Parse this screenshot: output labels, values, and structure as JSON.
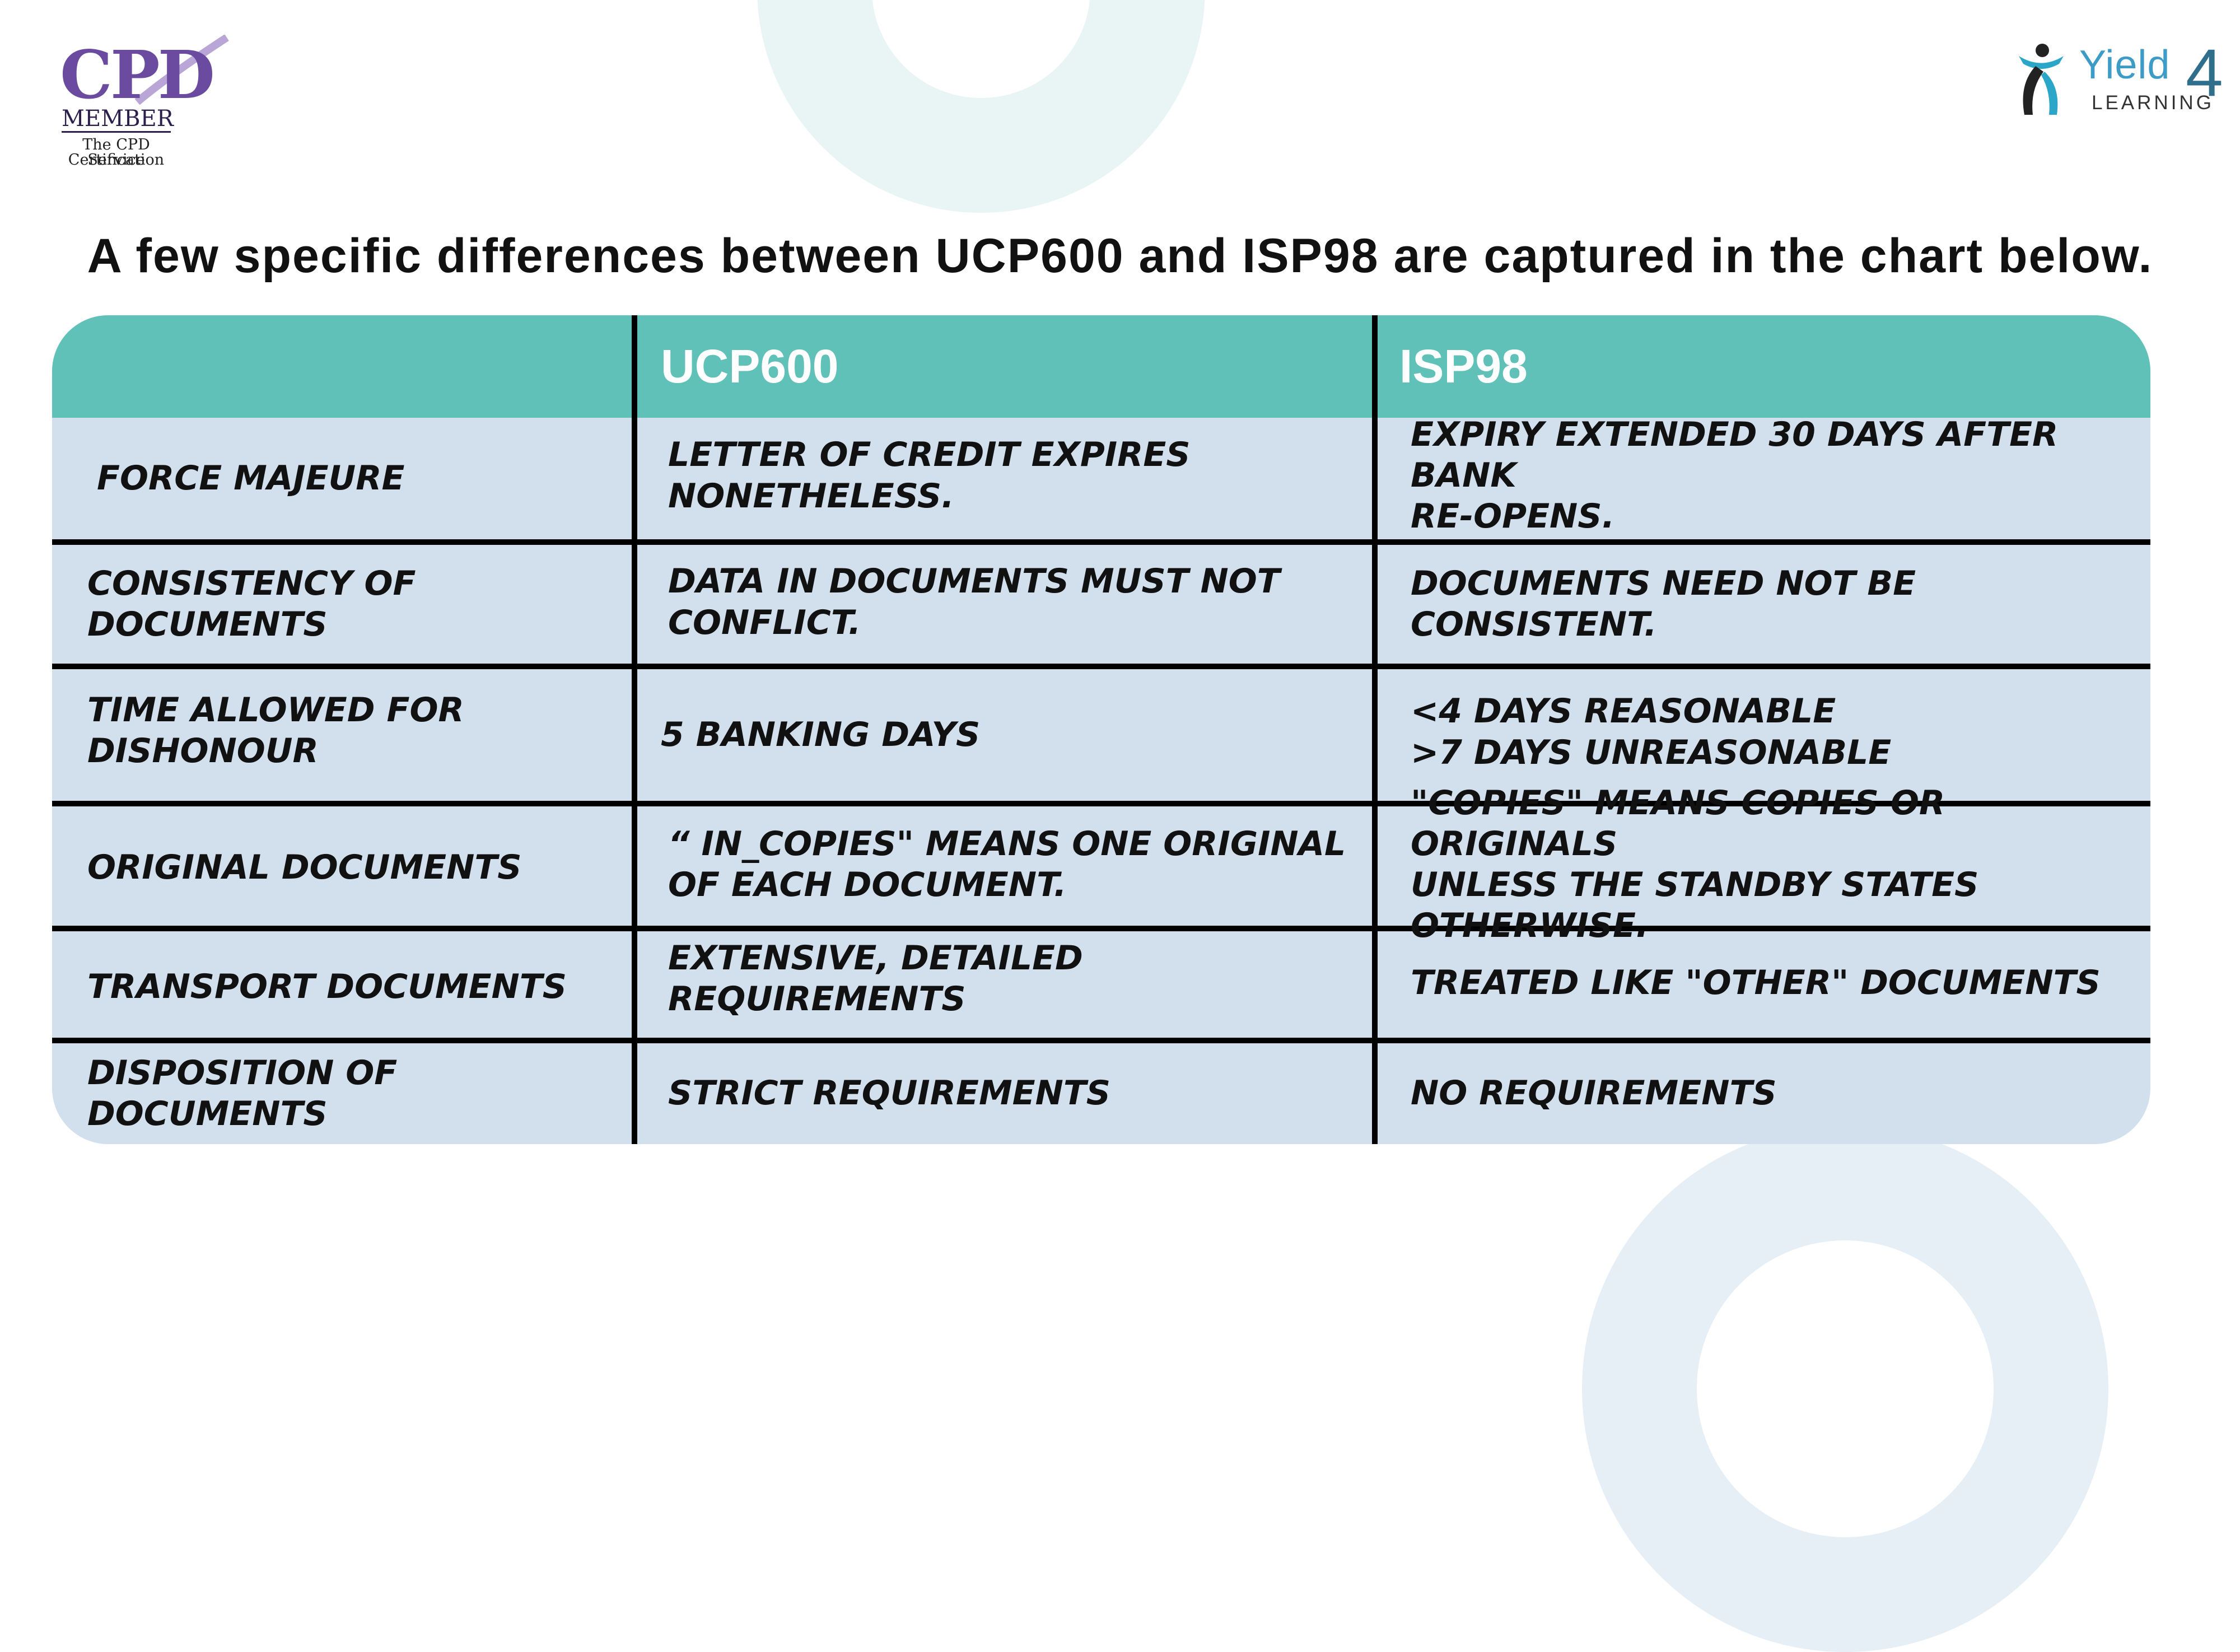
{
  "logos": {
    "cpd": {
      "mark": "CPD",
      "member": "MEMBER",
      "line1": "The CPD Certification",
      "line2": "Service"
    },
    "yield4": {
      "word": "Yield",
      "number": "4",
      "sub": "LEARNING"
    }
  },
  "title": "A few specific differences between UCP600 and ISP98 are captured in the chart below.",
  "table": {
    "headers": [
      "",
      "UCP600",
      "ISP98"
    ],
    "rows": [
      {
        "label": "FORCE MAJEURE",
        "ucp600": "LETTER OF CREDIT EXPIRES NONETHELESS.",
        "isp98": "EXPIRY EXTENDED 30 DAYS AFTER BANK\nRE-OPENS."
      },
      {
        "label": "CONSISTENCY OF DOCUMENTS",
        "ucp600": "DATA IN DOCUMENTS MUST NOT\nCONFLICT.",
        "isp98": "DOCUMENTS NEED NOT BE CONSISTENT."
      },
      {
        "label": "TIME ALLOWED FOR\nDISHONOUR",
        "ucp600": "5 BANKING DAYS",
        "isp98": "<4 DAYS REASONABLE\n>7 DAYS UNREASONABLE"
      },
      {
        "label": "ORIGINAL DOCUMENTS",
        "ucp600": "“ IN_COPIES\" MEANS ONE ORIGINAL\nOF EACH DOCUMENT.",
        "isp98": "\"COPIES\" MEANS COPIES OR ORIGINALS\nUNLESS THE STANDBY STATES OTHERWISE."
      },
      {
        "label": "TRANSPORT DOCUMENTS",
        "ucp600": "EXTENSIVE, DETAILED REQUIREMENTS",
        "isp98": "TREATED LIKE \"OTHER\" DOCUMENTS"
      },
      {
        "label": "DISPOSITION OF DOCUMENTS",
        "ucp600": "STRICT REQUIREMENTS",
        "isp98": "NO REQUIREMENTS"
      }
    ]
  },
  "colors": {
    "header": "#5fc1b8",
    "body": "#d2e0ee",
    "ring_top": "#e9f5f4",
    "ring_bottom": "#e6eef6",
    "cpd_purple": "#6a4ba0",
    "yield_blue": "#3d9bc7"
  }
}
